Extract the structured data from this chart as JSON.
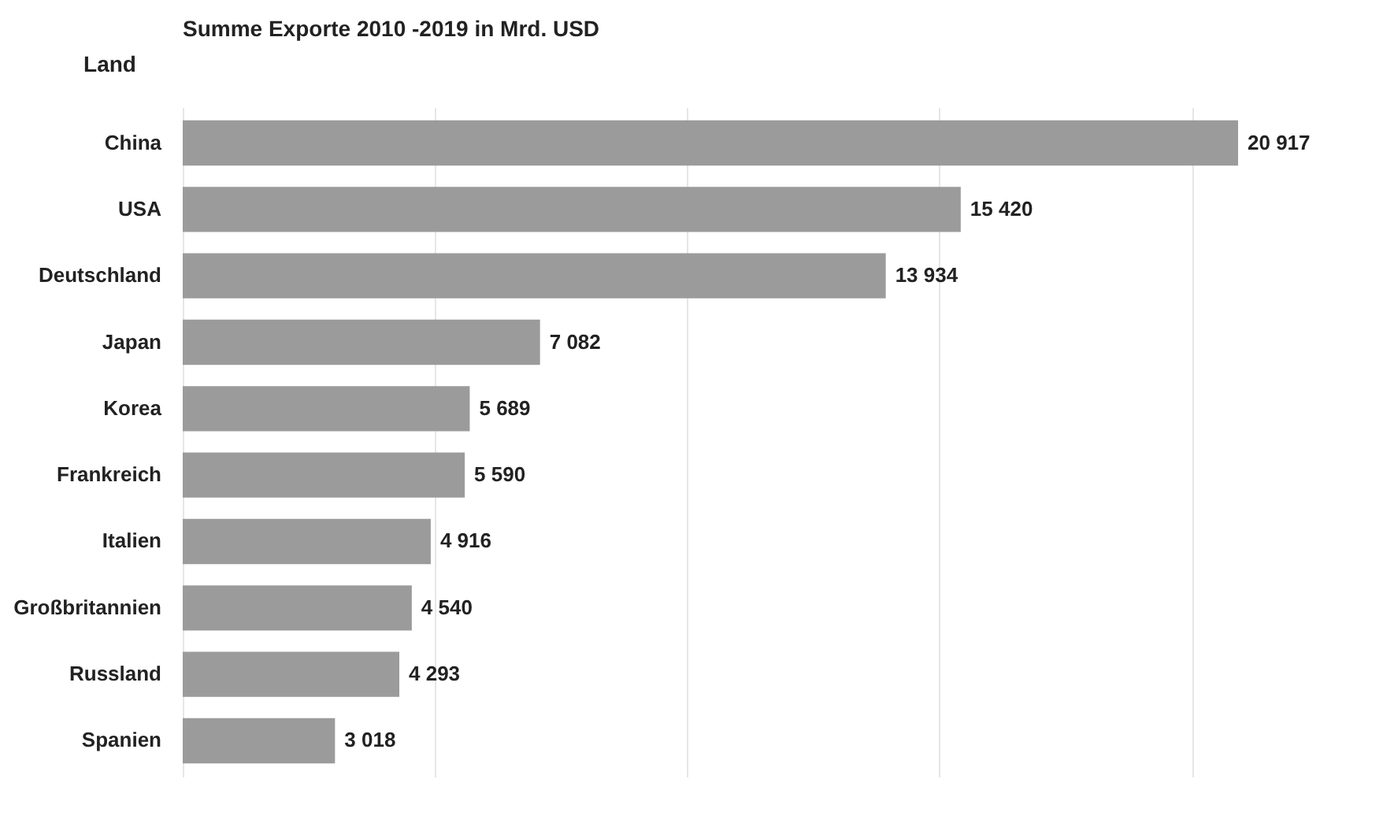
{
  "chart_data": {
    "type": "bar",
    "orientation": "horizontal",
    "title": "Summe Exporte 2010 -2019 in Mrd. USD",
    "ylabel": "Land",
    "categories": [
      "China",
      "USA",
      "Deutschland",
      "Japan",
      "Korea",
      "Frankreich",
      "Italien",
      "Großbritannien",
      "Russland",
      "Spanien"
    ],
    "values": [
      20917,
      15420,
      13934,
      7082,
      5689,
      5590,
      4916,
      4540,
      4293,
      3018
    ],
    "value_labels": [
      "20 917",
      "15 420",
      "13 934",
      "7 082",
      "5 689",
      "5 590",
      "4 916",
      "4 540",
      "4 293",
      "3 018"
    ],
    "color": "#9b9b9b",
    "xticks": [
      {
        "value": 0,
        "label": null
      },
      {
        "value": 5000,
        "label": null
      },
      {
        "value": 10000,
        "label": null
      },
      {
        "value": 15000,
        "label": null
      },
      {
        "value": 20000,
        "label": null
      }
    ],
    "grid": "x",
    "tick_labels": "y"
  }
}
